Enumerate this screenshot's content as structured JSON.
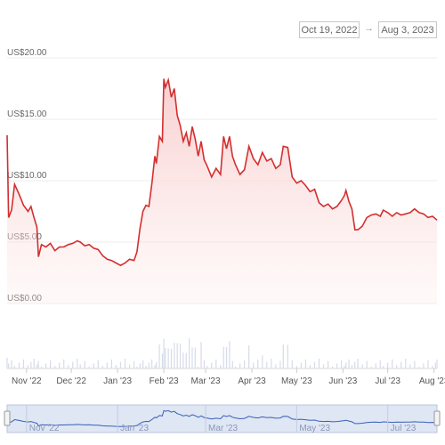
{
  "date_range": {
    "start": "Oct 19, 2022",
    "arrow": "→",
    "end": "Aug 3, 2023"
  },
  "colors": {
    "line": "#d32f2f",
    "fill": "#fde7e7",
    "volume": "#d6dbe8",
    "navigator_line": "#3a5fb8",
    "navigator_bg": "#dfe6f4"
  },
  "chart_data": {
    "type": "line",
    "y_ticks": [
      "US$20.00",
      "US$15.00",
      "US$10.00",
      "US$5.00",
      "US$0.00"
    ],
    "y_tick_values": [
      20,
      15,
      10,
      5,
      0
    ],
    "ylim": [
      0,
      20
    ],
    "x_ticks": [
      "Nov '22",
      "Dec '22",
      "Jan '23",
      "Feb '23",
      "Mar '23",
      "Apr '23",
      "May '23",
      "Jun '23",
      "Jul '23",
      "Aug '23"
    ],
    "x_tick_dates": [
      "2022-11-01",
      "2022-12-01",
      "2023-01-01",
      "2023-02-01",
      "2023-03-01",
      "2023-04-01",
      "2023-05-01",
      "2023-06-01",
      "2023-07-01",
      "2023-08-01"
    ],
    "navigator_ticks": [
      "Nov '22",
      "Jan '23",
      "Mar '23",
      "May '23",
      "Jul '23"
    ],
    "navigator_tick_dates": [
      "2022-11-01",
      "2023-01-01",
      "2023-03-01",
      "2023-05-01",
      "2023-07-01"
    ],
    "x_range": [
      "2022-10-19",
      "2023-08-03"
    ],
    "series": [
      {
        "points": [
          [
            "2022-10-19",
            13.7
          ],
          [
            "2022-10-20",
            7.0
          ],
          [
            "2022-10-22",
            7.6
          ],
          [
            "2022-10-24",
            9.7
          ],
          [
            "2022-10-27",
            8.9
          ],
          [
            "2022-10-30",
            8.0
          ],
          [
            "2022-11-02",
            7.5
          ],
          [
            "2022-11-04",
            7.9
          ],
          [
            "2022-11-06",
            7.0
          ],
          [
            "2022-11-08",
            6.2
          ],
          [
            "2022-11-09",
            3.8
          ],
          [
            "2022-11-11",
            4.8
          ],
          [
            "2022-11-14",
            4.6
          ],
          [
            "2022-11-17",
            4.9
          ],
          [
            "2022-11-20",
            4.3
          ],
          [
            "2022-11-23",
            4.6
          ],
          [
            "2022-11-26",
            4.6
          ],
          [
            "2022-11-29",
            4.8
          ],
          [
            "2022-12-02",
            4.9
          ],
          [
            "2022-12-05",
            5.1
          ],
          [
            "2022-12-07",
            5.0
          ],
          [
            "2022-12-10",
            4.7
          ],
          [
            "2022-12-13",
            4.8
          ],
          [
            "2022-12-16",
            4.5
          ],
          [
            "2022-12-19",
            4.4
          ],
          [
            "2022-12-22",
            3.9
          ],
          [
            "2022-12-25",
            3.6
          ],
          [
            "2022-12-28",
            3.5
          ],
          [
            "2022-12-31",
            3.3
          ],
          [
            "2023-01-03",
            3.1
          ],
          [
            "2023-01-06",
            3.3
          ],
          [
            "2023-01-09",
            3.6
          ],
          [
            "2023-01-12",
            3.5
          ],
          [
            "2023-01-14",
            4.2
          ],
          [
            "2023-01-16",
            6.1
          ],
          [
            "2023-01-18",
            7.5
          ],
          [
            "2023-01-20",
            8.0
          ],
          [
            "2023-01-22",
            7.9
          ],
          [
            "2023-01-24",
            9.8
          ],
          [
            "2023-01-26",
            12.0
          ],
          [
            "2023-01-27",
            11.4
          ],
          [
            "2023-01-29",
            13.6
          ],
          [
            "2023-01-31",
            13.2
          ],
          [
            "2023-02-01",
            18.3
          ],
          [
            "2023-02-02",
            17.6
          ],
          [
            "2023-02-04",
            18.2
          ],
          [
            "2023-02-06",
            16.8
          ],
          [
            "2023-02-08",
            17.5
          ],
          [
            "2023-02-10",
            15.3
          ],
          [
            "2023-02-12",
            14.5
          ],
          [
            "2023-02-14",
            13.2
          ],
          [
            "2023-02-16",
            13.9
          ],
          [
            "2023-02-18",
            12.8
          ],
          [
            "2023-02-20",
            14.4
          ],
          [
            "2023-02-22",
            13.4
          ],
          [
            "2023-02-24",
            12.0
          ],
          [
            "2023-02-26",
            13.2
          ],
          [
            "2023-02-28",
            11.7
          ],
          [
            "2023-03-02",
            11.2
          ],
          [
            "2023-03-05",
            10.3
          ],
          [
            "2023-03-08",
            11.0
          ],
          [
            "2023-03-11",
            10.5
          ],
          [
            "2023-03-13",
            13.6
          ],
          [
            "2023-03-15",
            12.6
          ],
          [
            "2023-03-17",
            13.6
          ],
          [
            "2023-03-19",
            12.0
          ],
          [
            "2023-03-21",
            11.3
          ],
          [
            "2023-03-24",
            10.5
          ],
          [
            "2023-03-27",
            10.9
          ],
          [
            "2023-03-30",
            12.8
          ],
          [
            "2023-04-02",
            11.8
          ],
          [
            "2023-04-05",
            11.3
          ],
          [
            "2023-04-08",
            12.3
          ],
          [
            "2023-04-11",
            11.6
          ],
          [
            "2023-04-14",
            11.8
          ],
          [
            "2023-04-17",
            11.0
          ],
          [
            "2023-04-20",
            11.3
          ],
          [
            "2023-04-22",
            12.8
          ],
          [
            "2023-04-25",
            12.7
          ],
          [
            "2023-04-28",
            10.3
          ],
          [
            "2023-05-01",
            9.8
          ],
          [
            "2023-05-04",
            10.0
          ],
          [
            "2023-05-07",
            9.6
          ],
          [
            "2023-05-10",
            9.1
          ],
          [
            "2023-05-13",
            9.3
          ],
          [
            "2023-05-16",
            8.2
          ],
          [
            "2023-05-19",
            7.9
          ],
          [
            "2023-05-22",
            8.1
          ],
          [
            "2023-05-25",
            7.7
          ],
          [
            "2023-05-28",
            7.9
          ],
          [
            "2023-05-31",
            8.4
          ],
          [
            "2023-06-02",
            8.8
          ],
          [
            "2023-06-03",
            9.2
          ],
          [
            "2023-06-05",
            8.3
          ],
          [
            "2023-06-07",
            7.7
          ],
          [
            "2023-06-09",
            6.0
          ],
          [
            "2023-06-11",
            6.0
          ],
          [
            "2023-06-14",
            6.3
          ],
          [
            "2023-06-17",
            7.0
          ],
          [
            "2023-06-20",
            7.2
          ],
          [
            "2023-06-23",
            7.3
          ],
          [
            "2023-06-26",
            7.1
          ],
          [
            "2023-06-28",
            7.6
          ],
          [
            "2023-07-01",
            7.4
          ],
          [
            "2023-07-04",
            7.1
          ],
          [
            "2023-07-07",
            7.4
          ],
          [
            "2023-07-10",
            7.2
          ],
          [
            "2023-07-13",
            7.3
          ],
          [
            "2023-07-16",
            7.4
          ],
          [
            "2023-07-19",
            7.7
          ],
          [
            "2023-07-22",
            7.4
          ],
          [
            "2023-07-25",
            7.3
          ],
          [
            "2023-07-28",
            7.0
          ],
          [
            "2023-07-31",
            7.1
          ],
          [
            "2023-08-02",
            6.9
          ],
          [
            "2023-08-03",
            6.8
          ]
        ]
      }
    ]
  }
}
